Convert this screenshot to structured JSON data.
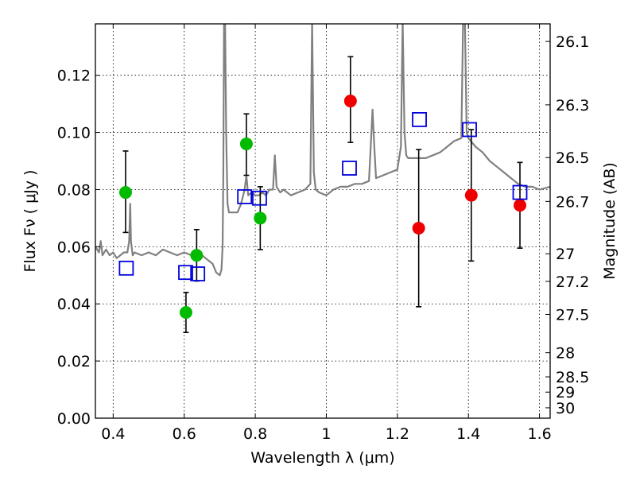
{
  "chart_data": {
    "type": "scatter",
    "title": "",
    "xlabel": "Wavelength  λ (μm)",
    "ylabel": "Flux  Fν  ( μJy )",
    "ylabel_right": "Magnitude (AB)",
    "xlim": [
      0.35,
      1.63
    ],
    "ylim": [
      0,
      0.138
    ],
    "grid": true,
    "x_ticks": [
      {
        "value": 0.4,
        "label": "0.4"
      },
      {
        "value": 0.6,
        "label": "0.6"
      },
      {
        "value": 0.8,
        "label": "0.8"
      },
      {
        "value": 1.0,
        "label": "1"
      },
      {
        "value": 1.2,
        "label": "1.2"
      },
      {
        "value": 1.4,
        "label": "1.4"
      },
      {
        "value": 1.6,
        "label": "1.6"
      }
    ],
    "y_ticks": [
      {
        "value": 0.0,
        "label": "0.00"
      },
      {
        "value": 0.02,
        "label": "0.02"
      },
      {
        "value": 0.04,
        "label": "0.04"
      },
      {
        "value": 0.06,
        "label": "0.06"
      },
      {
        "value": 0.08,
        "label": "0.08"
      },
      {
        "value": 0.1,
        "label": "0.10"
      },
      {
        "value": 0.12,
        "label": "0.12"
      }
    ],
    "mag_ticks": [
      {
        "value": 26.1,
        "label": "26.1"
      },
      {
        "value": 26.3,
        "label": "26.3"
      },
      {
        "value": 26.5,
        "label": "26.5"
      },
      {
        "value": 26.7,
        "label": "26.7"
      },
      {
        "value": 27.0,
        "label": "27"
      },
      {
        "value": 27.2,
        "label": "27.2"
      },
      {
        "value": 27.5,
        "label": "27.5"
      },
      {
        "value": 28.0,
        "label": "28"
      },
      {
        "value": 28.5,
        "label": "28.5"
      },
      {
        "value": 29.0,
        "label": "29"
      },
      {
        "value": 30.0,
        "label": "30"
      }
    ],
    "series": [
      {
        "marker": "circle",
        "color": "#00bb00",
        "points": [
          {
            "x": 0.435,
            "y": 0.079,
            "err_lo": 0.065,
            "err_hi": 0.0935
          },
          {
            "x": 0.605,
            "y": 0.037,
            "err_lo": 0.03,
            "err_hi": 0.044
          },
          {
            "x": 0.635,
            "y": 0.057,
            "err_lo": 0.048,
            "err_hi": 0.066
          },
          {
            "x": 0.775,
            "y": 0.096,
            "err_lo": 0.085,
            "err_hi": 0.1065
          },
          {
            "x": 0.814,
            "y": 0.07,
            "err_lo": 0.059,
            "err_hi": 0.081
          }
        ]
      },
      {
        "marker": "circle",
        "color": "#ee0000",
        "points": [
          {
            "x": 1.068,
            "y": 0.111,
            "err_lo": 0.0965,
            "err_hi": 0.1265
          },
          {
            "x": 1.26,
            "y": 0.0665,
            "err_lo": 0.039,
            "err_hi": 0.094
          },
          {
            "x": 1.408,
            "y": 0.078,
            "err_lo": 0.055,
            "err_hi": 0.101
          },
          {
            "x": 1.545,
            "y": 0.0745,
            "err_lo": 0.0595,
            "err_hi": 0.0895
          }
        ]
      },
      {
        "marker": "open-square",
        "color": "#0000dd",
        "points": [
          {
            "x": 0.437,
            "y": 0.0525
          },
          {
            "x": 0.604,
            "y": 0.051
          },
          {
            "x": 0.638,
            "y": 0.0505
          },
          {
            "x": 0.77,
            "y": 0.0775
          },
          {
            "x": 0.812,
            "y": 0.077
          },
          {
            "x": 1.065,
            "y": 0.0875
          },
          {
            "x": 1.262,
            "y": 0.1045
          },
          {
            "x": 1.403,
            "y": 0.101
          },
          {
            "x": 1.545,
            "y": 0.079
          }
        ]
      }
    ],
    "model_spectrum": {
      "color": "#808080",
      "x": [
        0.35,
        0.36,
        0.365,
        0.37,
        0.38,
        0.39,
        0.4,
        0.41,
        0.42,
        0.43,
        0.44,
        0.445,
        0.448,
        0.45,
        0.455,
        0.46,
        0.48,
        0.5,
        0.52,
        0.54,
        0.56,
        0.58,
        0.6,
        0.62,
        0.64,
        0.66,
        0.68,
        0.69,
        0.7,
        0.705,
        0.708,
        0.71,
        0.712,
        0.715,
        0.718,
        0.722,
        0.726,
        0.73,
        0.74,
        0.75,
        0.76,
        0.77,
        0.775,
        0.78,
        0.79,
        0.8,
        0.81,
        0.82,
        0.83,
        0.84,
        0.85,
        0.855,
        0.86,
        0.87,
        0.88,
        0.9,
        0.92,
        0.94,
        0.955,
        0.96,
        0.965,
        0.97,
        0.98,
        1.0,
        1.02,
        1.04,
        1.06,
        1.08,
        1.1,
        1.12,
        1.125,
        1.13,
        1.135,
        1.14,
        1.16,
        1.18,
        1.2,
        1.21,
        1.215,
        1.22,
        1.225,
        1.23,
        1.25,
        1.26,
        1.28,
        1.3,
        1.32,
        1.34,
        1.36,
        1.38,
        1.385,
        1.39,
        1.395,
        1.4,
        1.42,
        1.44,
        1.46,
        1.48,
        1.5,
        1.52,
        1.54,
        1.56,
        1.58,
        1.6,
        1.63
      ],
      "y": [
        0.06,
        0.058,
        0.062,
        0.057,
        0.059,
        0.057,
        0.058,
        0.056,
        0.057,
        0.058,
        0.058,
        0.062,
        0.075,
        0.062,
        0.057,
        0.058,
        0.057,
        0.058,
        0.057,
        0.059,
        0.058,
        0.057,
        0.058,
        0.057,
        0.058,
        0.056,
        0.054,
        0.051,
        0.05,
        0.052,
        0.06,
        0.085,
        0.139,
        0.139,
        0.1,
        0.075,
        0.072,
        0.072,
        0.072,
        0.072,
        0.075,
        0.08,
        0.085,
        0.078,
        0.079,
        0.078,
        0.078,
        0.079,
        0.078,
        0.08,
        0.08,
        0.092,
        0.081,
        0.079,
        0.08,
        0.078,
        0.079,
        0.08,
        0.082,
        0.139,
        0.086,
        0.08,
        0.079,
        0.078,
        0.08,
        0.081,
        0.081,
        0.082,
        0.082,
        0.083,
        0.095,
        0.108,
        0.095,
        0.084,
        0.085,
        0.086,
        0.087,
        0.095,
        0.139,
        0.1,
        0.092,
        0.091,
        0.091,
        0.091,
        0.091,
        0.092,
        0.093,
        0.095,
        0.097,
        0.098,
        0.139,
        0.139,
        0.1,
        0.098,
        0.095,
        0.093,
        0.09,
        0.088,
        0.086,
        0.084,
        0.082,
        0.081,
        0.081,
        0.08,
        0.081
      ]
    }
  }
}
